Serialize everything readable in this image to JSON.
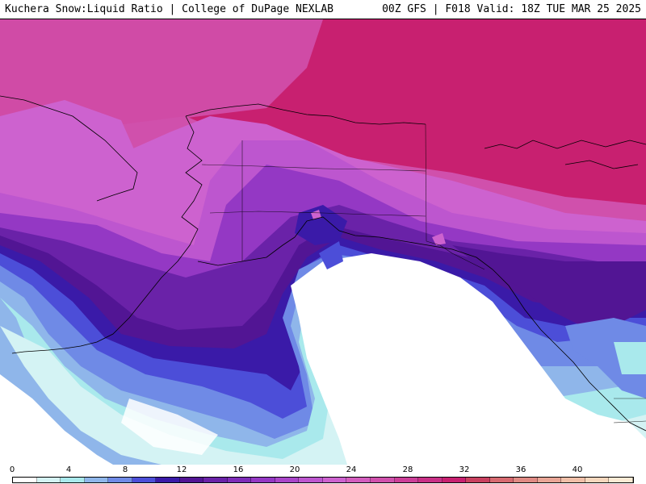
{
  "header": {
    "left_title": "Kuchera Snow:Liquid Ratio | College of DuPage NEXLAB",
    "right_title": "00Z GFS | F018 Valid: 18Z TUE MAR 25 2025"
  },
  "legend": {
    "ticks": [
      "0",
      "4",
      "8",
      "12",
      "16",
      "20",
      "24",
      "28",
      "32",
      "36",
      "40"
    ],
    "min": 0,
    "max": 44,
    "colors": [
      "#ffffff",
      "#d4f3f4",
      "#a9e9ec",
      "#8fb6ea",
      "#6f8ae6",
      "#4c4ed8",
      "#3a1aa8",
      "#521594",
      "#6a22a8",
      "#7e2cb8",
      "#9438c4",
      "#a945c9",
      "#bd56cf",
      "#cd62cf",
      "#d35dbe",
      "#d050ac",
      "#cc3e98",
      "#c92f86",
      "#c82070",
      "#c9405f",
      "#d76a70",
      "#e08a84",
      "#e9a596",
      "#f0bfa8",
      "#f6d7bd",
      "#fbead4"
    ]
  },
  "map": {
    "colors": {
      "ocean_none": "#ffffff",
      "very_low": "#d4f3f4",
      "low": "#a9e9ec",
      "low_mid": "#8fb6ea",
      "mid_blue": "#6f8ae6",
      "blue": "#4c4ed8",
      "indigo": "#3a1aa8",
      "deep_purple": "#521594",
      "purple": "#6a22a8",
      "violet": "#9438c4",
      "orchid": "#bd56cf",
      "pink_violet": "#cd62cf",
      "magenta": "#d050ac",
      "deep_magenta": "#c82070",
      "border_line": "#000000"
    }
  }
}
